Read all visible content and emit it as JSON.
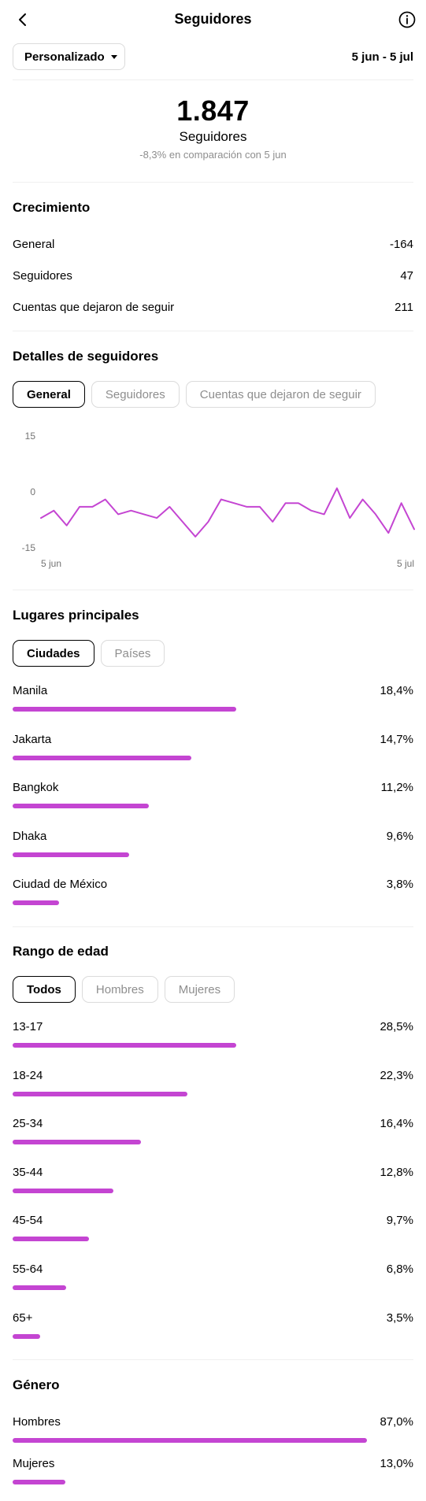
{
  "header": {
    "title": "Seguidores",
    "back_icon": "chevron-left-icon",
    "info_icon": "info-icon"
  },
  "filter": {
    "range_label": "Personalizado",
    "date_range": "5 jun - 5 jul"
  },
  "summary": {
    "total": "1.847",
    "label": "Seguidores",
    "comparison": "-8,3% en comparación con 5 jun"
  },
  "growth": {
    "title": "Crecimiento",
    "rows": [
      {
        "label": "General",
        "value": "-164"
      },
      {
        "label": "Seguidores",
        "value": "47"
      },
      {
        "label": "Cuentas que dejaron de seguir",
        "value": "211"
      }
    ]
  },
  "details": {
    "title": "Detalles de seguidores",
    "tabs": [
      "General",
      "Seguidores",
      "Cuentas que dejaron de seguir"
    ],
    "active_tab": 0
  },
  "chart_data": {
    "type": "line",
    "color": "#c445d2",
    "y_ticks": [
      "15",
      "0",
      "-15"
    ],
    "ylim": [
      -15,
      15
    ],
    "x_labels": [
      "5 jun",
      "5 jul"
    ],
    "values": [
      -7,
      -5,
      -9,
      -4,
      -4,
      -2,
      -6,
      -5,
      -6,
      -7,
      -4,
      -8,
      -12,
      -8,
      -2,
      -3,
      -4,
      -4,
      -8,
      -3,
      -3,
      -5,
      -6,
      1,
      -7,
      -2,
      -6,
      -11,
      -3,
      -10
    ]
  },
  "places": {
    "title": "Lugares principales",
    "tabs": [
      "Ciudades",
      "Países"
    ],
    "active_tab": 0,
    "rows": [
      {
        "label": "Manila",
        "value": "18,4%",
        "pct": 18.4
      },
      {
        "label": "Jakarta",
        "value": "14,7%",
        "pct": 14.7
      },
      {
        "label": "Bangkok",
        "value": "11,2%",
        "pct": 11.2
      },
      {
        "label": "Dhaka",
        "value": "9,6%",
        "pct": 9.6
      },
      {
        "label": "Ciudad de México",
        "value": "3,8%",
        "pct": 3.8
      }
    ]
  },
  "age": {
    "title": "Rango de edad",
    "tabs": [
      "Todos",
      "Hombres",
      "Mujeres"
    ],
    "active_tab": 0,
    "rows": [
      {
        "label": "13-17",
        "value": "28,5%",
        "pct": 28.5
      },
      {
        "label": "18-24",
        "value": "22,3%",
        "pct": 22.3
      },
      {
        "label": "25-34",
        "value": "16,4%",
        "pct": 16.4
      },
      {
        "label": "35-44",
        "value": "12,8%",
        "pct": 12.8
      },
      {
        "label": "45-54",
        "value": "9,7%",
        "pct": 9.7
      },
      {
        "label": "55-64",
        "value": "6,8%",
        "pct": 6.8
      },
      {
        "label": "65+",
        "value": "3,5%",
        "pct": 3.5
      }
    ]
  },
  "gender": {
    "title": "Género",
    "rows": [
      {
        "label": "Hombres",
        "value": "87,0%",
        "pct": 87.0
      },
      {
        "label": "Mujeres",
        "value": "13,0%",
        "pct": 13.0
      }
    ]
  }
}
